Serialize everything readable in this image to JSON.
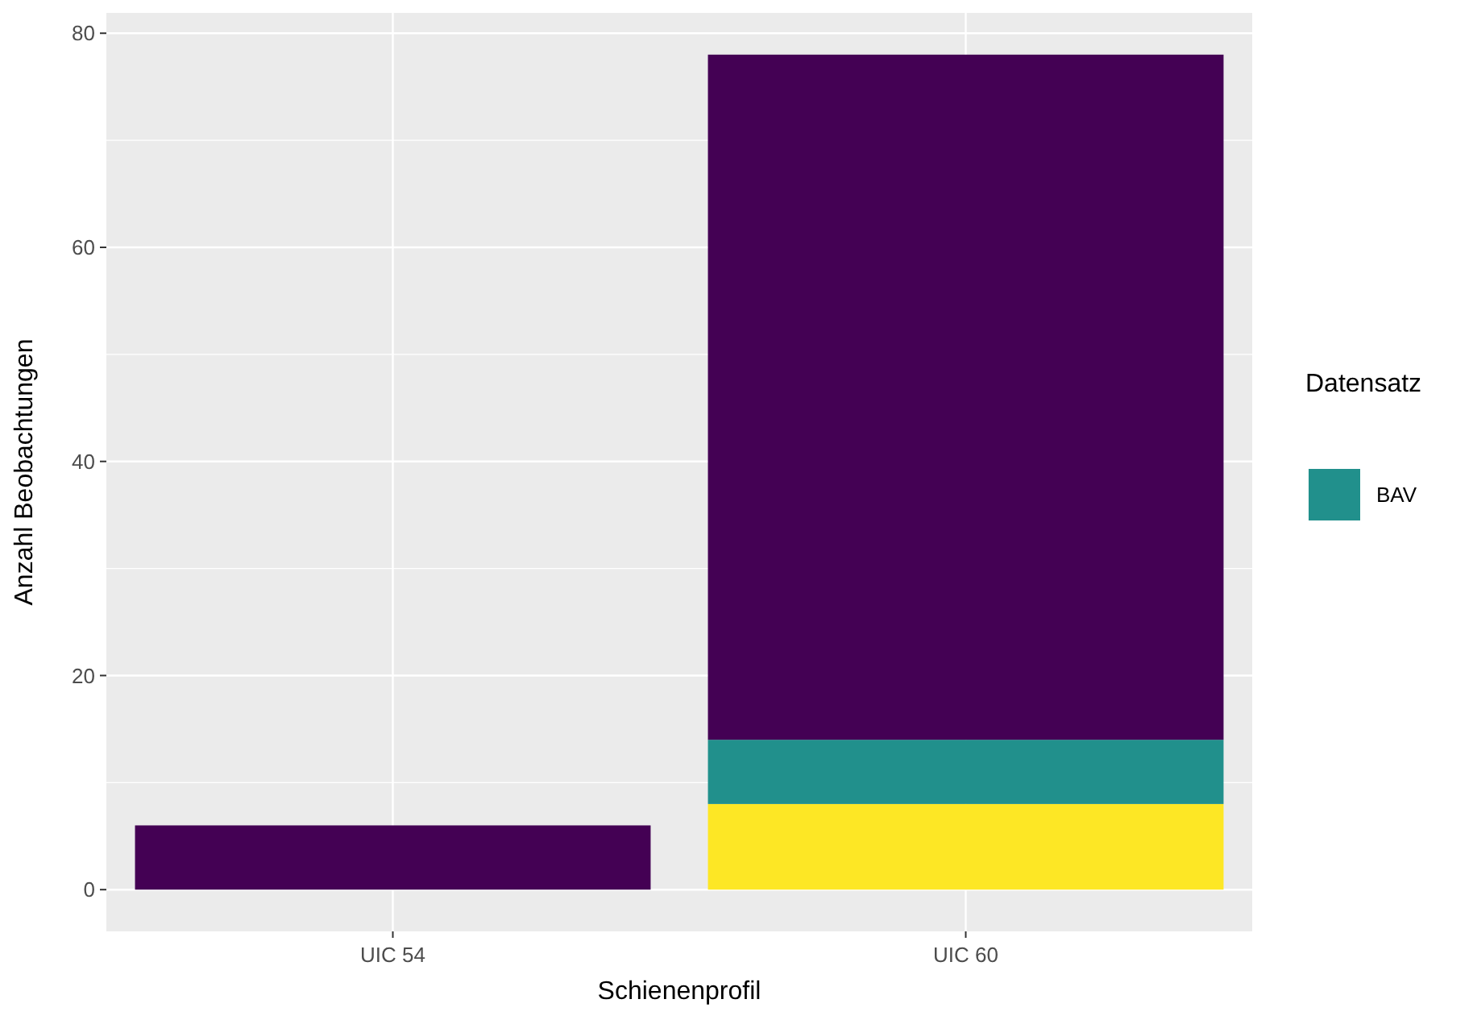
{
  "chart_data": {
    "type": "bar",
    "stacked": true,
    "xlabel": "Schienenprofil",
    "ylabel": "Anzahl Beobachtungen",
    "legend_title": "Datensatz",
    "legend": "right",
    "grid": true,
    "categories": [
      "UIC 54",
      "UIC 60"
    ],
    "series": [
      {
        "color": "#fde725",
        "values": [
          0,
          8
        ]
      },
      {
        "name": "BAV",
        "color": "#21908c",
        "values": [
          0,
          6
        ]
      },
      {
        "color": "#440154",
        "values": [
          6,
          64
        ]
      }
    ],
    "ylim": [
      -3.9,
      81.9
    ],
    "yticks": [
      0,
      20,
      40,
      60,
      80
    ]
  }
}
